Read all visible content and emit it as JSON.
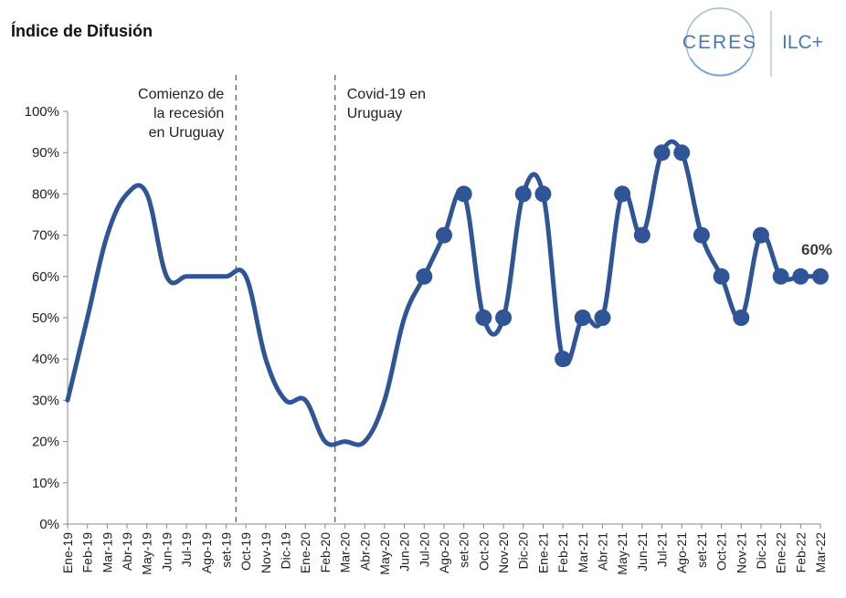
{
  "header": {
    "title": "Índice de Difusión"
  },
  "logo": {
    "left_text": "CERES",
    "right_text": "ILC+",
    "accent_color": "#4a78b5"
  },
  "chart_data": {
    "type": "line",
    "title": "Índice de Difusión",
    "xlabel": "",
    "ylabel": "",
    "ylim": [
      0,
      100
    ],
    "y_ticks": [
      "0%",
      "10%",
      "20%",
      "30%",
      "40%",
      "50%",
      "60%",
      "70%",
      "80%",
      "90%",
      "100%"
    ],
    "categories": [
      "Ene-19",
      "Feb-19",
      "Mar-19",
      "Abr-19",
      "May-19",
      "Jun-19",
      "Jul-19",
      "Ago-19",
      "set-19",
      "Oct-19",
      "Nov-19",
      "Dic-19",
      "Ene-20",
      "Feb-20",
      "Mar-20",
      "Abr-20",
      "May-20",
      "Jun-20",
      "Jul-20",
      "Ago-20",
      "set-20",
      "Oct-20",
      "Nov-20",
      "Dic-20",
      "Ene-21",
      "Feb-21",
      "Mar-21",
      "Abr-21",
      "May-21",
      "Jun-21",
      "Jul-21",
      "Ago-21",
      "set-21",
      "Oct-21",
      "Nov-21",
      "Dic-21",
      "Ene-22",
      "Feb-22",
      "Mar-22"
    ],
    "values": [
      30,
      50,
      70,
      80,
      80,
      60,
      60,
      60,
      60,
      60,
      40,
      30,
      30,
      20,
      20,
      20,
      30,
      50,
      60,
      70,
      80,
      50,
      50,
      80,
      80,
      40,
      50,
      50,
      80,
      70,
      90,
      90,
      70,
      60,
      50,
      70,
      60,
      60,
      60
    ],
    "marker_start_index": 18,
    "series_color": "#2f5597",
    "annotations": [
      {
        "text_lines": [
          "Comienzo de",
          "la recesión",
          "en Uruguay"
        ],
        "after_category": "set-19"
      },
      {
        "text_lines": [
          "Covid-19 en",
          "Uruguay"
        ],
        "after_category": "Feb-20"
      }
    ],
    "last_value_label": "60%"
  }
}
